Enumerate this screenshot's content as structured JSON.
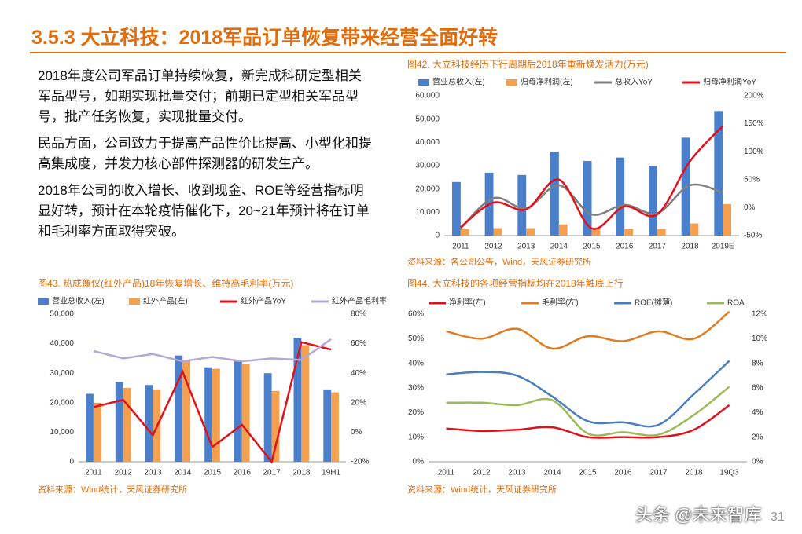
{
  "header": {
    "title": "3.5.3 大立科技：2018军品订单恢复带来经营全面好转"
  },
  "text": {
    "paragraphs": [
      "2018年度公司军品订单持续恢复，新完成科研定型相关军品型号，如期实现批量交付；前期已定型相关军品型号，批产任务恢复，实现批量交付。",
      "民品方面，公司致力于提高产品性价比提高、小型化和提高集成度，并发力核心部件探测器的研发生产。",
      "2018年公司的收入增长、收到现金、ROE等经营指标明显好转，预计在本轮疫情催化下，20~21年预计将在订单和毛利率方面取得突破。"
    ]
  },
  "chart_data": [
    {
      "type": "bar",
      "title": "图42. 大立科技经历下行周期后2018年重新焕发活力(万元)",
      "source": "资料来源：各公司公告，Wind，天风证券研究所",
      "smooth": true,
      "grid": false,
      "legend": "top",
      "categories": [
        "2011",
        "2012",
        "2013",
        "2014",
        "2015",
        "2016",
        "2017",
        "2018",
        "2019E"
      ],
      "ylim": [
        0,
        60000
      ],
      "yticks": [
        0,
        {
          "value": 10000,
          "label": "10,000"
        },
        {
          "value": 20000,
          "label": "20,000"
        },
        {
          "value": 30000,
          "label": "30,000"
        },
        {
          "value": 40000,
          "label": "40,000"
        },
        {
          "value": 50000,
          "label": "50,000"
        },
        {
          "value": 60000,
          "label": "60,000"
        }
      ],
      "y2lim": [
        -50,
        200
      ],
      "y2ticks": [
        {
          "value": -50,
          "label": "-50%"
        },
        {
          "value": 0,
          "label": "0%"
        },
        {
          "value": 50,
          "label": "50%"
        },
        {
          "value": 100,
          "label": "100%"
        },
        {
          "value": 150,
          "label": "150%"
        },
        {
          "value": 200,
          "label": "200%"
        }
      ],
      "series": [
        {
          "name": "营业总收入(左)",
          "type": "bar",
          "color": "#4a7fcb",
          "values": [
            23000,
            27000,
            26000,
            36000,
            32000,
            33500,
            30000,
            42000,
            53500
          ]
        },
        {
          "name": "归母净利润(左)",
          "type": "bar",
          "color": "#f4a04e",
          "values": [
            2800,
            3200,
            3200,
            4800,
            3000,
            3000,
            2800,
            5200,
            13500
          ]
        },
        {
          "name": "总收入YoY",
          "type": "line",
          "axis": "y2",
          "color": "#7f7f7f",
          "values": [
            -37,
            17,
            -1,
            40,
            -12,
            5,
            -10,
            40,
            27
          ]
        },
        {
          "name": "归母净利润YoY",
          "type": "line",
          "axis": "y2",
          "color": "#e3101c",
          "values": [
            -35,
            9,
            -3,
            50,
            -37,
            2,
            -12,
            83,
            146
          ]
        }
      ]
    },
    {
      "type": "bar",
      "title": "图43. 热成像仪(红外产品)18年恢复增长、维持高毛利率(万元)",
      "source": "资料来源：Wind统计，天风证券研究所",
      "smooth": false,
      "grid": false,
      "legend": "top",
      "categories": [
        "2011",
        "2012",
        "2013",
        "2014",
        "2015",
        "2016",
        "2017",
        "2018",
        "19H1"
      ],
      "ylim": [
        0,
        50000
      ],
      "yticks": [
        0,
        {
          "value": 10000,
          "label": "10,000"
        },
        {
          "value": 20000,
          "label": "20,000"
        },
        {
          "value": 30000,
          "label": "30,000"
        },
        {
          "value": 40000,
          "label": "40,000"
        },
        {
          "value": 50000,
          "label": "50,000"
        }
      ],
      "y2lim": [
        -20,
        80
      ],
      "y2ticks": [
        {
          "value": -20,
          "label": "-20%"
        },
        {
          "value": 0,
          "label": "0%"
        },
        {
          "value": 20,
          "label": "20%"
        },
        {
          "value": 40,
          "label": "40%"
        },
        {
          "value": 60,
          "label": "60%"
        },
        {
          "value": 80,
          "label": "80%"
        }
      ],
      "series": [
        {
          "name": "营业总收入(左)",
          "type": "bar",
          "color": "#4a7fcb",
          "values": [
            23000,
            27000,
            26000,
            36000,
            32000,
            34000,
            30000,
            42000,
            24500
          ]
        },
        {
          "name": "红外产品(左)",
          "type": "bar",
          "color": "#f4a04e",
          "values": [
            20000,
            25000,
            24500,
            34500,
            31500,
            33000,
            24000,
            39500,
            23500
          ]
        },
        {
          "name": "红外产品YoY",
          "type": "line",
          "axis": "y2",
          "color": "#e3101c",
          "values": [
            17,
            22,
            -2,
            41,
            -10,
            5,
            -20,
            61,
            56
          ]
        },
        {
          "name": "红外产品毛利率",
          "type": "line",
          "axis": "y2",
          "color": "#b4a7d6",
          "values": [
            55,
            50,
            53,
            48,
            51,
            48,
            50,
            49,
            63
          ]
        }
      ]
    },
    {
      "type": "line",
      "title": "图44. 大立科技的各项经营指标均在2018年触底上行",
      "source": "资料来源：Wind统计，天风证券研究所",
      "smooth": true,
      "grid": false,
      "legend": "top",
      "categories": [
        "2011",
        "2012",
        "2013",
        "2014",
        "2015",
        "2016",
        "2017",
        "2018",
        "19Q3"
      ],
      "ylim": [
        0,
        60
      ],
      "yticks": [
        {
          "value": 0,
          "label": "0%"
        },
        {
          "value": 10,
          "label": "10%"
        },
        {
          "value": 20,
          "label": "20%"
        },
        {
          "value": 30,
          "label": "30%"
        },
        {
          "value": 40,
          "label": "40%"
        },
        {
          "value": 50,
          "label": "50%"
        },
        {
          "value": 60,
          "label": "60%"
        }
      ],
      "y2lim": [
        0,
        12
      ],
      "y2ticks": [
        {
          "value": 0,
          "label": "0%"
        },
        {
          "value": 2,
          "label": "2%"
        },
        {
          "value": 4,
          "label": "4%"
        },
        {
          "value": 6,
          "label": "6%"
        },
        {
          "value": 8,
          "label": "8%"
        },
        {
          "value": 10,
          "label": "10%"
        },
        {
          "value": 12,
          "label": "12%"
        }
      ],
      "series": [
        {
          "name": "净利率(左)",
          "type": "line",
          "color": "#e3101c",
          "values": [
            13.5,
            12.5,
            13,
            14,
            10,
            10,
            10,
            13,
            23
          ]
        },
        {
          "name": "毛利率(左)",
          "type": "line",
          "color": "#e07b20",
          "values": [
            53,
            50,
            54,
            46,
            51,
            49,
            53,
            50,
            61
          ]
        },
        {
          "name": "ROE(摊薄)",
          "type": "line",
          "axis": "y2",
          "color": "#4a7ebb",
          "values": [
            7.1,
            7.3,
            7.0,
            5.3,
            3.3,
            3.2,
            3.0,
            5.5,
            8.2
          ]
        },
        {
          "name": "ROA",
          "type": "line",
          "axis": "y2",
          "color": "#9bbb59",
          "values": [
            4.8,
            4.8,
            4.6,
            5.0,
            2.3,
            2.4,
            2.2,
            3.8,
            6.1
          ]
        }
      ]
    }
  ],
  "footer": {
    "watermark": "头条 @未来智库",
    "page": "31"
  }
}
